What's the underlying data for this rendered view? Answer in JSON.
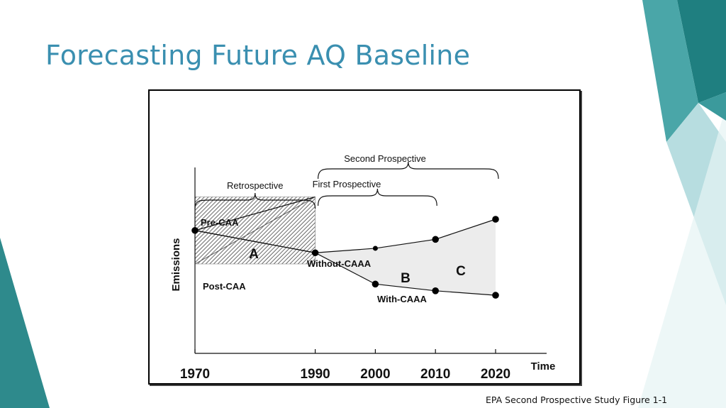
{
  "slide": {
    "title": "Forecasting Future AQ Baseline",
    "caption": "EPA Second Prospective Study Figure 1-1",
    "colors": {
      "title": "#3a8fb0",
      "teal_dark": "#2e8a8c",
      "teal_mid": "#4aa6a8",
      "teal_light": "#b7dde0"
    }
  },
  "chart_data": {
    "type": "line",
    "title": "",
    "xlabel": "Time",
    "ylabel": "Emissions",
    "xticks": [
      "1970",
      "1990",
      "2000",
      "2010",
      "2020"
    ],
    "series": [
      {
        "name": "Without-CAAA",
        "x": [
          1970,
          1990,
          2000,
          2010,
          2020
        ],
        "y": [
          55,
          45,
          47,
          51,
          60
        ]
      },
      {
        "name": "With-CAAA",
        "x": [
          1970,
          1990,
          2000,
          2010,
          2020
        ],
        "y": [
          55,
          45,
          31,
          28,
          26
        ]
      },
      {
        "name": "Pre-CAA",
        "x": [
          1970,
          1990
        ],
        "y": [
          55,
          70
        ]
      }
    ],
    "regions": [
      "A",
      "B",
      "C"
    ],
    "line_labels": [
      "Pre-CAA",
      "Post-CAA",
      "Without-CAAA",
      "With-CAAA"
    ],
    "periods": [
      {
        "label": "Retrospective",
        "start": 1970,
        "end": 1990
      },
      {
        "label": "First Prospective",
        "start": 1990,
        "end": 2010
      },
      {
        "label": "Second Prospective",
        "start": 1990,
        "end": 2020
      }
    ],
    "xlim": [
      1970,
      2020
    ],
    "ylim": [
      0,
      80
    ],
    "grid": false,
    "legend": "none"
  }
}
